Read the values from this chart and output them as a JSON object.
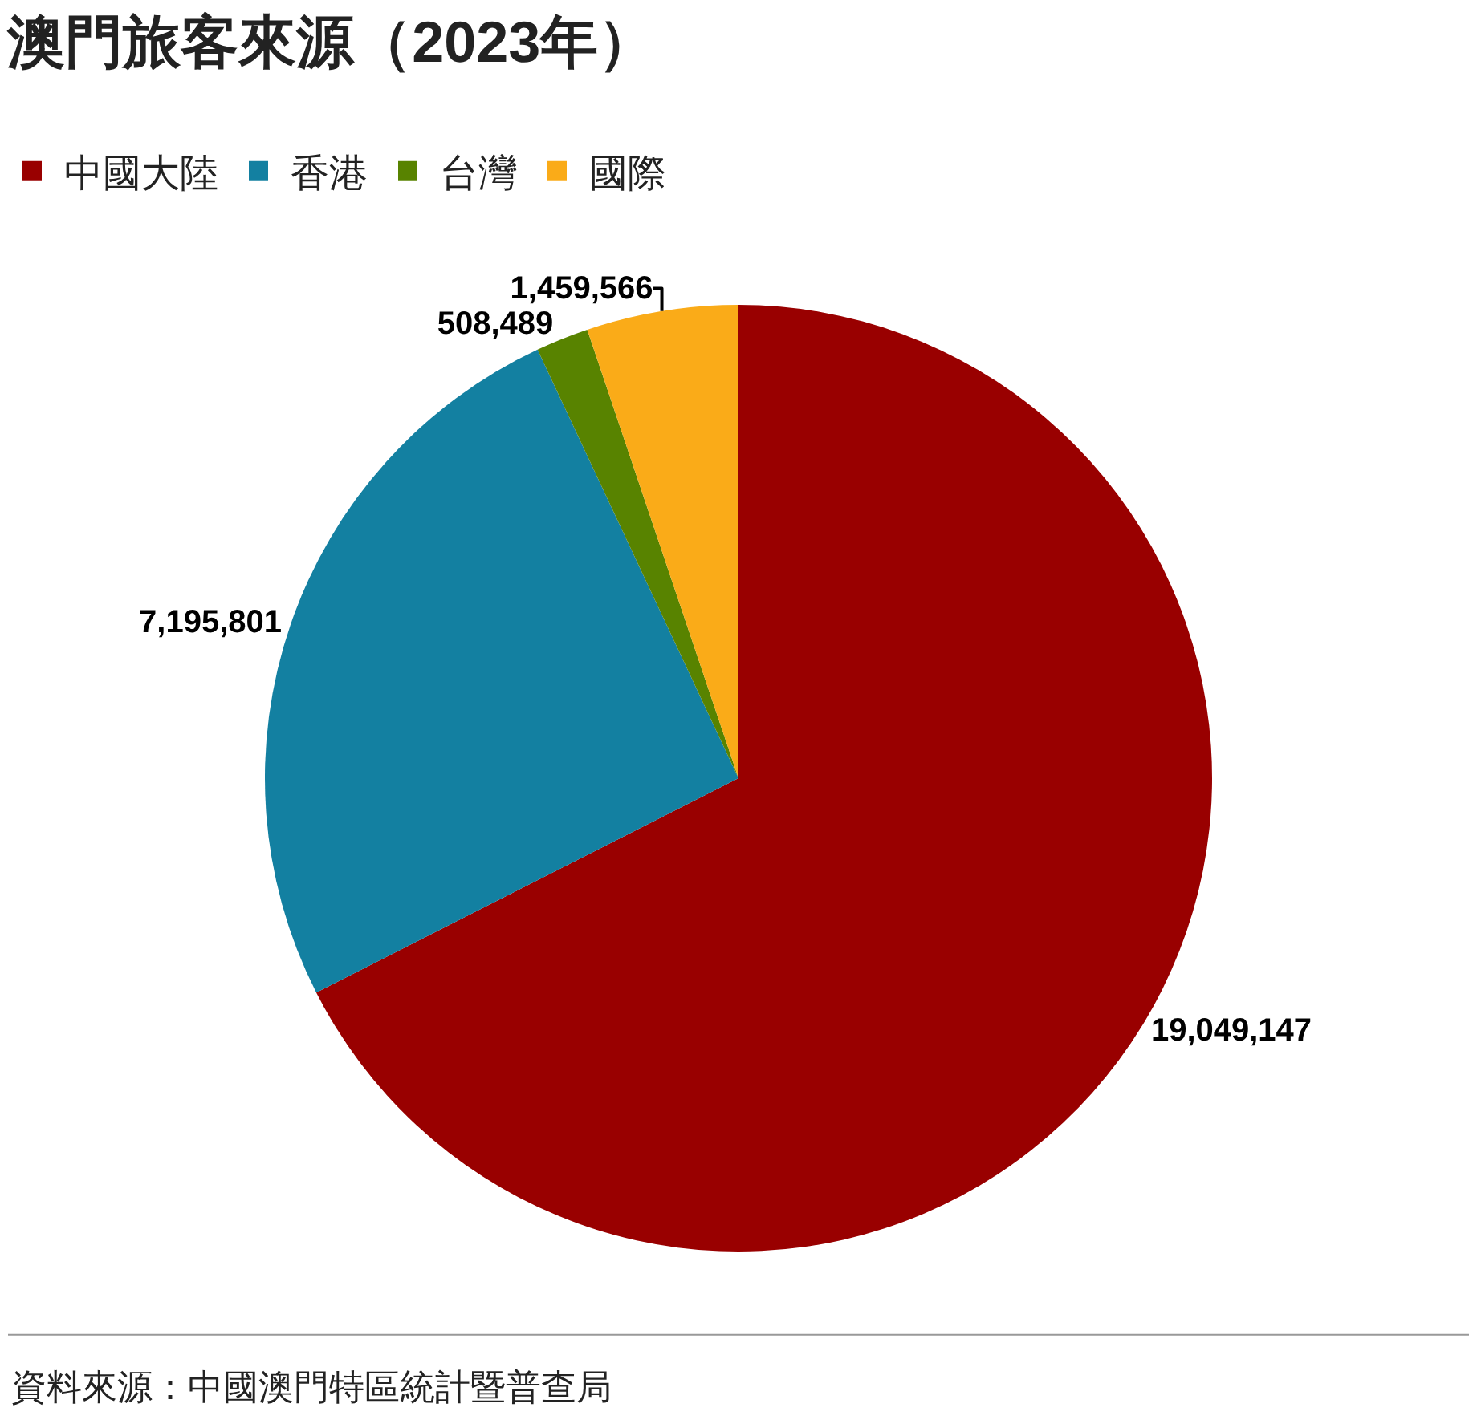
{
  "chart_data": {
    "type": "pie",
    "title": "澳門旅客來源（2023年）",
    "categories": [
      "中國大陸",
      "香港",
      "台灣",
      "國際"
    ],
    "values": [
      19049147,
      7195801,
      508489,
      1459566
    ],
    "colors": [
      "#990000",
      "#1380a1",
      "#588300",
      "#faab18"
    ],
    "value_labels": [
      "19,049,147",
      "7,195,801",
      "508,489",
      "1,459,566"
    ],
    "legend": "top left",
    "annotations": [
      "資料來源：中國澳門特區統計暨普查局"
    ]
  }
}
